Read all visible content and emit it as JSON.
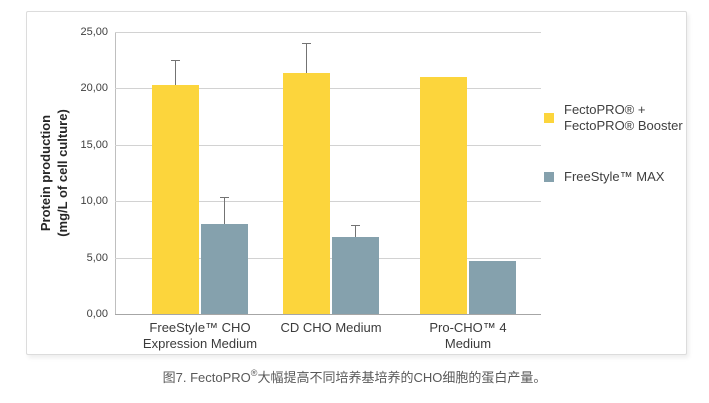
{
  "y_axis": {
    "title_line1": "Protein production",
    "title_line2": "(mg/L of cell culture)",
    "ticks": [
      "25,00",
      "20,00",
      "15,00",
      "10,00",
      "5,00",
      "0,00"
    ]
  },
  "chart_data": {
    "type": "bar",
    "title": "",
    "categories": [
      "FreeStyle™ CHO\nExpression Medium",
      "CD CHO Medium",
      "Pro-CHO™ 4\nMedium"
    ],
    "series": [
      {
        "name": "FectoPRO® + FectoPRO® Booster",
        "color": "#FCD53C",
        "values": [
          20.3,
          21.4,
          21.0
        ],
        "error_plus": [
          2.2,
          2.6,
          0
        ]
      },
      {
        "name": "FreeStyle™ MAX",
        "color": "#85A1AD",
        "values": [
          8.0,
          6.8,
          4.7
        ],
        "error_plus": [
          2.4,
          1.1,
          0
        ]
      }
    ],
    "ylabel": "Protein production (mg/L of cell culture)",
    "xlabel": "",
    "ylim": [
      0,
      25
    ],
    "ytick_step": 5,
    "grid": true,
    "legend_position": "right",
    "error_bars": "upper only"
  },
  "legend": {
    "items": [
      {
        "label_line1": "FectoPRO® +",
        "label_line2": "FectoPRO® Booster",
        "color": "#FCD53C"
      },
      {
        "label_line1": "FreeStyle™ MAX",
        "label_line2": "",
        "color": "#85A1AD"
      }
    ]
  },
  "caption": {
    "figure_label": "图7. FectoPRO",
    "superscript": "®",
    "text": "大幅提高不同培养基培养的CHO细胞的蛋白产量。"
  }
}
